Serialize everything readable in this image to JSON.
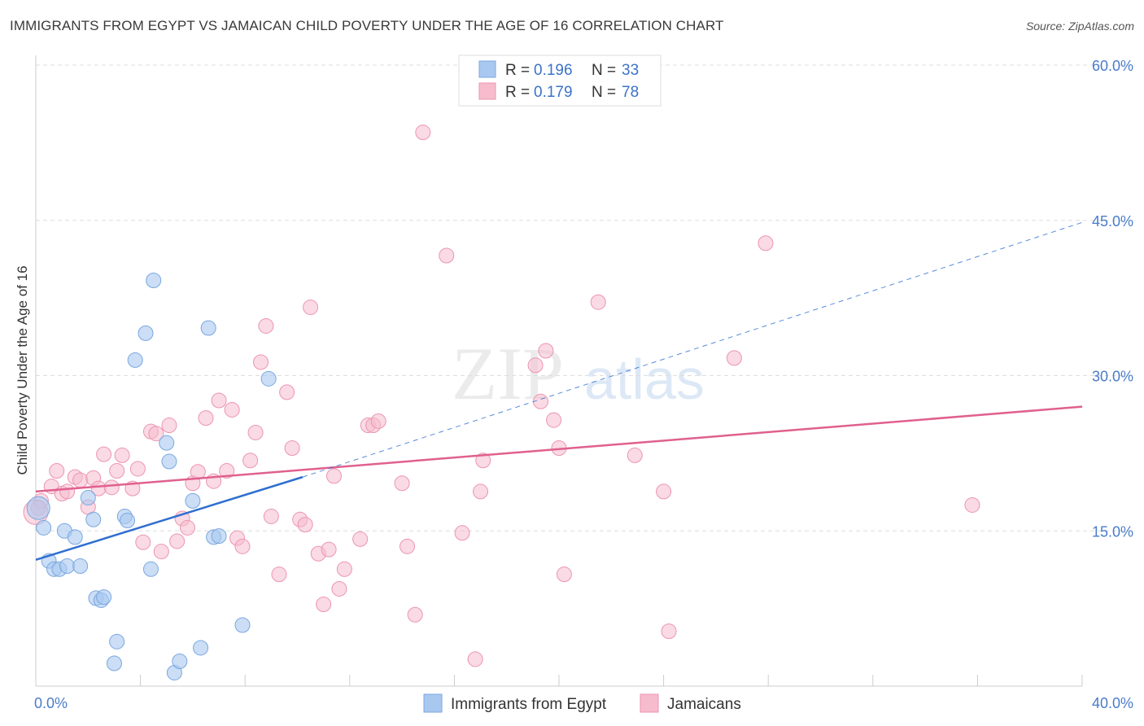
{
  "header": {
    "title": "IMMIGRANTS FROM EGYPT VS JAMAICAN CHILD POVERTY UNDER THE AGE OF 16 CORRELATION CHART",
    "source": "Source: ZipAtlas.com"
  },
  "watermark": {
    "zip": "ZIP",
    "atlas": "atlas"
  },
  "legend_top": [
    {
      "r_label": "R =",
      "r_value": "0.196",
      "n_label": "N =",
      "n_value": "33"
    },
    {
      "r_label": "R =",
      "r_value": "0.179",
      "n_label": "N =",
      "n_value": "78"
    }
  ],
  "legend_bottom": [
    {
      "label": "Immigrants from Egypt"
    },
    {
      "label": "Jamaicans"
    }
  ],
  "colors": {
    "egypt_fill": "#a9c8f0",
    "egypt_stroke": "#7aa7e0",
    "egypt_line": "#2f6fd0",
    "jam_fill": "#f6bccd",
    "jam_stroke": "#ec95b0",
    "jam_line": "#e0608e",
    "grid": "#dddddd",
    "tick_text": "#4a7cc9"
  },
  "chart_data": {
    "type": "scatter",
    "title": "IMMIGRANTS FROM EGYPT VS JAMAICAN CHILD POVERTY UNDER THE AGE OF 16 CORRELATION CHART",
    "xlabel": "",
    "ylabel": "Child Poverty Under the Age of 16",
    "xlim": [
      0,
      40
    ],
    "ylim": [
      0,
      60
    ],
    "x_tick_labels": [
      {
        "value": 0,
        "label": "0.0%"
      },
      {
        "value": 40,
        "label": "40.0%"
      }
    ],
    "y_tick_labels": [
      {
        "value": 15,
        "label": "15.0%"
      },
      {
        "value": 30,
        "label": "30.0%"
      },
      {
        "value": 45,
        "label": "45.0%"
      },
      {
        "value": 60,
        "label": "60.0%"
      }
    ],
    "series": [
      {
        "name": "Immigrants from Egypt",
        "r": 0.196,
        "n": 33,
        "trend": {
          "solid": [
            [
              0,
              12.2
            ],
            [
              10.2,
              20.2
            ]
          ],
          "dashed": [
            [
              10.2,
              20.2
            ],
            [
              40,
              44.8
            ]
          ]
        },
        "points": [
          [
            0.3,
            15.3
          ],
          [
            0.5,
            12.1
          ],
          [
            0.7,
            11.3
          ],
          [
            0.9,
            11.3
          ],
          [
            1.1,
            15.0
          ],
          [
            1.2,
            11.6
          ],
          [
            1.5,
            14.4
          ],
          [
            1.7,
            11.6
          ],
          [
            2.0,
            18.2
          ],
          [
            2.2,
            16.1
          ],
          [
            2.3,
            8.5
          ],
          [
            2.5,
            8.3
          ],
          [
            2.6,
            8.6
          ],
          [
            3.1,
            4.3
          ],
          [
            3.0,
            2.2
          ],
          [
            3.4,
            16.4
          ],
          [
            3.5,
            16.0
          ],
          [
            3.8,
            31.5
          ],
          [
            4.2,
            34.1
          ],
          [
            4.5,
            39.2
          ],
          [
            4.4,
            11.3
          ],
          [
            5.0,
            23.5
          ],
          [
            5.1,
            21.7
          ],
          [
            5.3,
            1.3
          ],
          [
            5.5,
            2.4
          ],
          [
            6.0,
            17.9
          ],
          [
            6.3,
            3.7
          ],
          [
            6.6,
            34.6
          ],
          [
            6.8,
            14.4
          ],
          [
            7.0,
            14.5
          ],
          [
            7.9,
            5.9
          ],
          [
            8.9,
            29.7
          ],
          [
            0.1,
            17.2
          ]
        ]
      },
      {
        "name": "Jamaicans",
        "r": 0.179,
        "n": 78,
        "trend": {
          "solid": [
            [
              0,
              18.8
            ],
            [
              40,
              27.0
            ]
          ]
        },
        "points": [
          [
            0.1,
            17.2
          ],
          [
            0.2,
            17.9
          ],
          [
            0.6,
            19.3
          ],
          [
            0.8,
            20.8
          ],
          [
            1.0,
            18.6
          ],
          [
            1.2,
            18.8
          ],
          [
            1.5,
            20.2
          ],
          [
            1.7,
            19.9
          ],
          [
            2.0,
            17.3
          ],
          [
            2.2,
            20.1
          ],
          [
            2.4,
            19.1
          ],
          [
            2.6,
            22.4
          ],
          [
            2.9,
            19.2
          ],
          [
            3.1,
            20.8
          ],
          [
            3.3,
            22.3
          ],
          [
            3.7,
            19.1
          ],
          [
            3.9,
            21.0
          ],
          [
            4.1,
            13.9
          ],
          [
            4.4,
            24.6
          ],
          [
            4.6,
            24.4
          ],
          [
            4.8,
            13.0
          ],
          [
            5.1,
            25.2
          ],
          [
            5.4,
            14.0
          ],
          [
            5.6,
            16.2
          ],
          [
            5.8,
            15.3
          ],
          [
            6.0,
            19.6
          ],
          [
            6.2,
            20.7
          ],
          [
            6.5,
            25.9
          ],
          [
            6.8,
            19.8
          ],
          [
            7.0,
            27.6
          ],
          [
            7.3,
            20.8
          ],
          [
            7.5,
            26.7
          ],
          [
            7.7,
            14.3
          ],
          [
            7.9,
            13.5
          ],
          [
            8.2,
            21.8
          ],
          [
            8.4,
            24.5
          ],
          [
            8.6,
            31.3
          ],
          [
            8.8,
            34.8
          ],
          [
            9.0,
            16.4
          ],
          [
            9.3,
            10.8
          ],
          [
            9.6,
            28.4
          ],
          [
            9.8,
            23.0
          ],
          [
            10.1,
            16.1
          ],
          [
            10.3,
            15.6
          ],
          [
            10.5,
            36.6
          ],
          [
            10.8,
            12.8
          ],
          [
            11.0,
            7.9
          ],
          [
            11.2,
            13.2
          ],
          [
            11.4,
            20.3
          ],
          [
            11.6,
            9.4
          ],
          [
            11.8,
            11.3
          ],
          [
            12.4,
            14.2
          ],
          [
            12.7,
            25.2
          ],
          [
            12.9,
            25.2
          ],
          [
            13.1,
            25.6
          ],
          [
            14.0,
            19.6
          ],
          [
            14.2,
            13.5
          ],
          [
            14.5,
            6.9
          ],
          [
            14.8,
            53.5
          ],
          [
            15.7,
            41.6
          ],
          [
            16.3,
            14.8
          ],
          [
            16.8,
            2.6
          ],
          [
            17.1,
            21.8
          ],
          [
            17.0,
            18.8
          ],
          [
            19.1,
            31.0
          ],
          [
            19.3,
            27.5
          ],
          [
            19.5,
            32.4
          ],
          [
            19.8,
            25.7
          ],
          [
            20.0,
            23.0
          ],
          [
            20.2,
            10.8
          ],
          [
            21.5,
            37.1
          ],
          [
            22.9,
            22.3
          ],
          [
            24.0,
            18.8
          ],
          [
            24.2,
            5.3
          ],
          [
            27.9,
            42.8
          ],
          [
            26.7,
            31.7
          ],
          [
            35.8,
            17.5
          ],
          [
            0.0,
            16.8
          ]
        ]
      }
    ]
  }
}
